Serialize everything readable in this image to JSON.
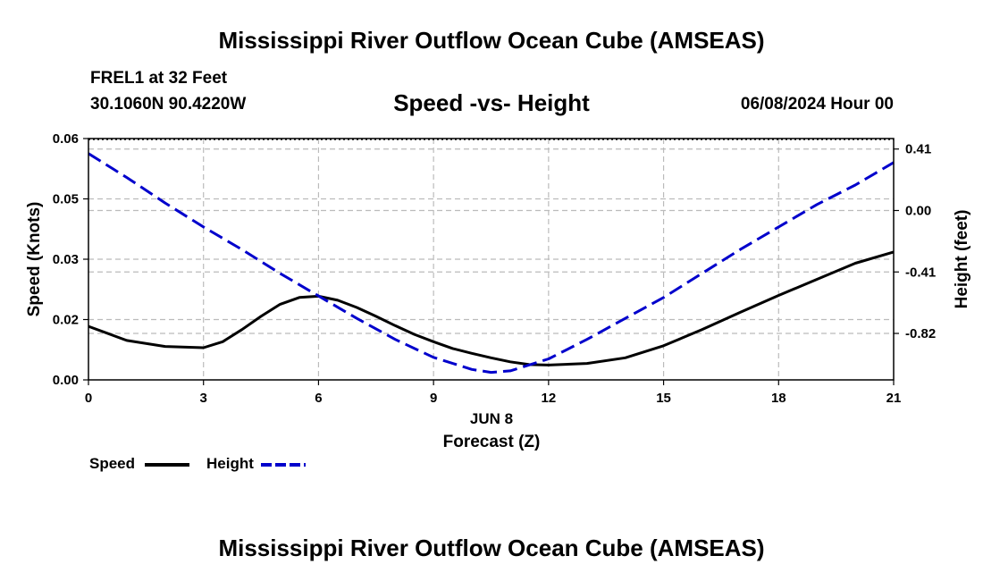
{
  "page": {
    "main_title": "Mississippi River Outflow Ocean Cube (AMSEAS)",
    "station": "FREL1 at 32 Feet",
    "coords": "30.1060N  90.4220W",
    "subtitle": "Speed -vs- Height",
    "datetime": "06/08/2024 Hour 00",
    "bottom_title": "Mississippi River Outflow Ocean Cube (AMSEAS)"
  },
  "colors": {
    "speed": "#000000",
    "height": "#0000cc",
    "grid": "#bbbbbb"
  },
  "chart_data": {
    "type": "line",
    "title": "Speed -vs- Height",
    "xlabel": "Forecast (Z)",
    "xdate_label": "JUN 8",
    "ylabel": "Speed (Knots)",
    "y2label": "Height (feet)",
    "xlim": [
      0,
      21
    ],
    "ylim": [
      0,
      0.06
    ],
    "y2lim": [
      -1.13,
      0.48
    ],
    "x_ticks": [
      0,
      3,
      6,
      9,
      12,
      15,
      18,
      21
    ],
    "x_tick_labels": [
      "0",
      "3",
      "6",
      "9",
      "12",
      "15",
      "18",
      "21"
    ],
    "y_ticks": [
      0,
      0.015,
      0.03,
      0.045,
      0.06
    ],
    "y_tick_labels": [
      "0.00",
      "0.02",
      "0.03",
      "0.05",
      "0.06"
    ],
    "y2_ticks": [
      -0.82,
      -0.41,
      0.0,
      0.41
    ],
    "y2_tick_labels": [
      "-0.82",
      "-0.41",
      "0.00",
      "0.41"
    ],
    "grid": true,
    "legend": [
      {
        "name": "Speed",
        "style": "solid"
      },
      {
        "name": "Height",
        "style": "dashed"
      }
    ],
    "series": [
      {
        "name": "Speed",
        "axis": "left",
        "style": "solid",
        "x": [
          0,
          1,
          2,
          3,
          3.5,
          4,
          4.5,
          5,
          5.5,
          6,
          6.5,
          7,
          7.5,
          8,
          8.5,
          9,
          9.5,
          10,
          10.5,
          11,
          11.5,
          12,
          13,
          14,
          15,
          16,
          17,
          18,
          19,
          20,
          21
        ],
        "values": [
          0.0133,
          0.0098,
          0.0083,
          0.008,
          0.0095,
          0.0125,
          0.0158,
          0.0188,
          0.0205,
          0.0208,
          0.0198,
          0.018,
          0.0158,
          0.0135,
          0.0113,
          0.0095,
          0.0078,
          0.0066,
          0.0055,
          0.0045,
          0.0038,
          0.0037,
          0.0041,
          0.0055,
          0.0085,
          0.0125,
          0.0168,
          0.021,
          0.025,
          0.029,
          0.0318
        ]
      },
      {
        "name": "Height",
        "axis": "right",
        "style": "dashed",
        "x": [
          0,
          1,
          2,
          3,
          4,
          5,
          6,
          7,
          8,
          9,
          10,
          10.5,
          11,
          12,
          13,
          14,
          15,
          16,
          17,
          18,
          19,
          20,
          21
        ],
        "values": [
          0.38,
          0.22,
          0.05,
          -0.11,
          -0.26,
          -0.42,
          -0.57,
          -0.72,
          -0.86,
          -0.98,
          -1.06,
          -1.08,
          -1.07,
          -0.99,
          -0.86,
          -0.72,
          -0.58,
          -0.42,
          -0.26,
          -0.11,
          0.04,
          0.17,
          0.32
        ]
      }
    ]
  }
}
